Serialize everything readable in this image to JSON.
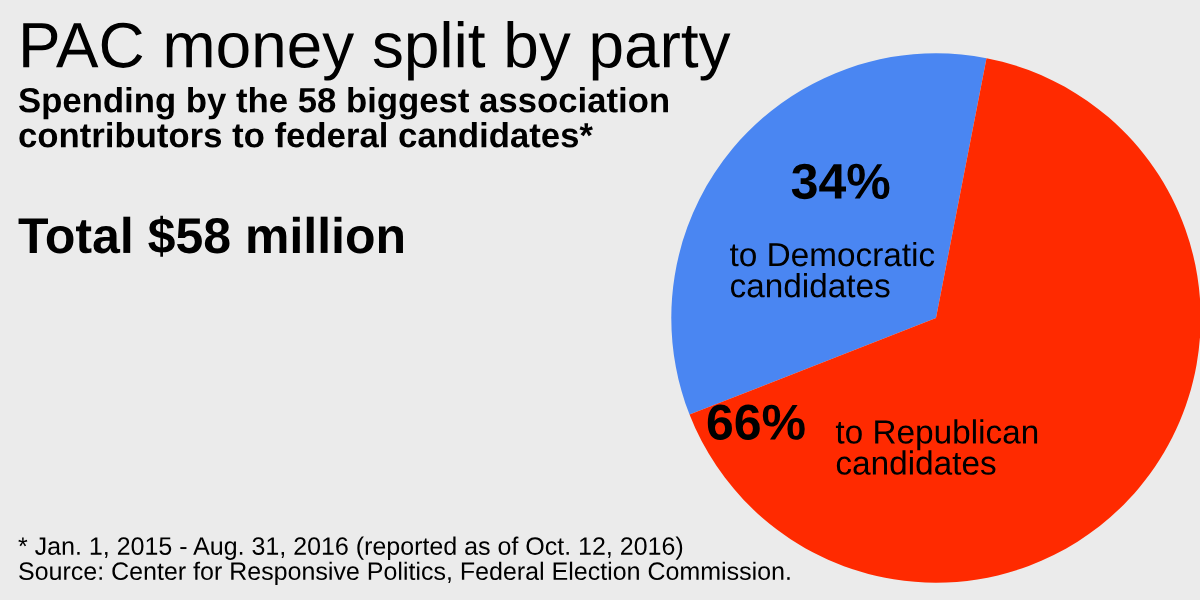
{
  "chart_data": {
    "type": "pie",
    "title": "PAC money split by party",
    "subtitle": "Spending by the 58 biggest association\ncontributors to federal candidates*",
    "categories": [
      "to Democratic\ncandidates",
      "to Republican\ncandidates"
    ],
    "values": [
      34,
      66
    ],
    "colors": [
      "#4a86f2",
      "#ff2a00"
    ],
    "value_labels": [
      "34%",
      "66%"
    ],
    "annotations": [
      "Total $58 million",
      "* Jan. 1, 2015 - Aug. 31, 2016 (reported as of Oct. 12, 2016)\nSource: Center for Responsive Politics, Federal Election Commission."
    ]
  }
}
